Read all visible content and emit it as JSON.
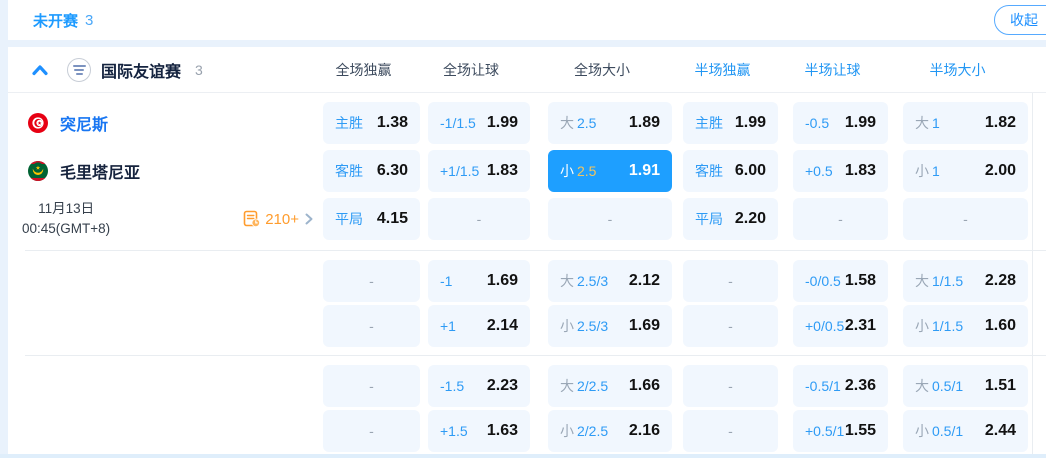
{
  "topbar": {
    "status_label": "未开赛",
    "status_count": "3",
    "collapse_label": "收起"
  },
  "league": {
    "name": "国际友谊赛",
    "count": "3"
  },
  "columns": [
    {
      "id": "full-win",
      "label": "全场独赢"
    },
    {
      "id": "full-handicap",
      "label": "全场让球"
    },
    {
      "id": "full-ou",
      "label": "全场大小"
    },
    {
      "id": "half-win",
      "label": "半场独赢"
    },
    {
      "id": "half-handicap",
      "label": "半场让球"
    },
    {
      "id": "half-ou",
      "label": "半场大小"
    }
  ],
  "match": {
    "home": {
      "name": "突尼斯",
      "flag": "tunisia-flag"
    },
    "away": {
      "name": "毛里塔尼亚",
      "flag": "mauritania-flag"
    },
    "date": "11月13日",
    "time": "00:45(GMT+8)",
    "more_markets": "210+"
  },
  "dash": "-",
  "odds_blocks": [
    {
      "rows": [
        [
          {
            "label": "主胜",
            "value": "1.38"
          },
          {
            "label": "-1/1.5",
            "value": "1.99"
          },
          {
            "prefix": "大",
            "label": "2.5",
            "value": "1.89"
          },
          {
            "label": "主胜",
            "value": "1.99"
          },
          {
            "label": "-0.5",
            "value": "1.99"
          },
          {
            "prefix": "大",
            "label": "1",
            "value": "1.82"
          }
        ],
        [
          {
            "label": "客胜",
            "value": "6.30"
          },
          {
            "label": "+1/1.5",
            "value": "1.83"
          },
          {
            "prefix": "小",
            "label": "2.5",
            "value": "1.91",
            "selected": true
          },
          {
            "label": "客胜",
            "value": "6.00"
          },
          {
            "label": "+0.5",
            "value": "1.83"
          },
          {
            "prefix": "小",
            "label": "1",
            "value": "2.00"
          }
        ],
        [
          {
            "label": "平局",
            "value": "4.15"
          },
          {
            "empty": true
          },
          {
            "empty": true
          },
          {
            "label": "平局",
            "value": "2.20"
          },
          {
            "empty": true
          },
          {
            "empty": true
          }
        ]
      ]
    },
    {
      "rows": [
        [
          {
            "empty": true
          },
          {
            "label": "-1",
            "value": "1.69"
          },
          {
            "prefix": "大",
            "label": "2.5/3",
            "value": "2.12"
          },
          {
            "empty": true
          },
          {
            "label": "-0/0.5",
            "value": "1.58"
          },
          {
            "prefix": "大",
            "label": "1/1.5",
            "value": "2.28"
          }
        ],
        [
          {
            "empty": true
          },
          {
            "label": "+1",
            "value": "2.14"
          },
          {
            "prefix": "小",
            "label": "2.5/3",
            "value": "1.69"
          },
          {
            "empty": true
          },
          {
            "label": "+0/0.5",
            "value": "2.31"
          },
          {
            "prefix": "小",
            "label": "1/1.5",
            "value": "1.60"
          }
        ]
      ]
    },
    {
      "rows": [
        [
          {
            "empty": true
          },
          {
            "label": "-1.5",
            "value": "2.23"
          },
          {
            "prefix": "大",
            "label": "2/2.5",
            "value": "1.66"
          },
          {
            "empty": true
          },
          {
            "label": "-0.5/1",
            "value": "2.36"
          },
          {
            "prefix": "大",
            "label": "0.5/1",
            "value": "1.51"
          }
        ],
        [
          {
            "empty": true
          },
          {
            "label": "+1.5",
            "value": "1.63"
          },
          {
            "prefix": "小",
            "label": "2/2.5",
            "value": "2.16"
          },
          {
            "empty": true
          },
          {
            "label": "+0.5/1",
            "value": "1.55"
          },
          {
            "prefix": "小",
            "label": "0.5/1",
            "value": "2.44"
          }
        ]
      ]
    }
  ],
  "colors": {
    "accent_blue": "#1e9bff",
    "label_blue": "#2e9bf5",
    "selected_bg": "#1e9fff",
    "selected_gold": "#f3c45e",
    "orange": "#ff9c2d",
    "home_team_blue": "#1876f2",
    "cell_bg": "#f1f7fe"
  }
}
